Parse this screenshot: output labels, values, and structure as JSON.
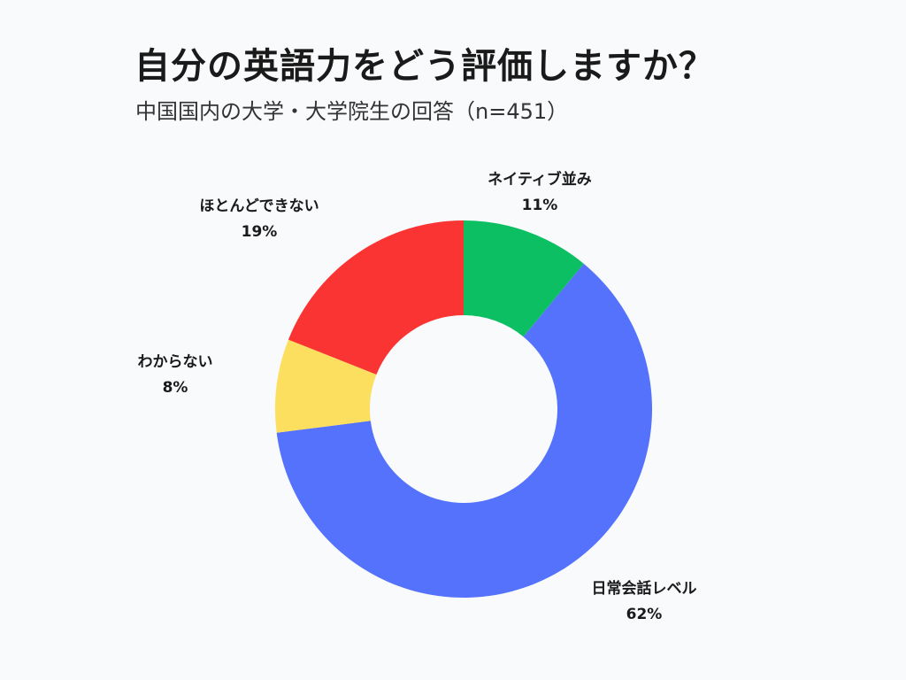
{
  "title": "自分の英語力をどう評価しますか？",
  "subtitle": "中国国内の大学・大学院生の回答（n=451）",
  "chart_data": {
    "type": "pie",
    "style": "donut",
    "title": "自分の英語力をどう評価しますか？",
    "subtitle": "中国国内の大学・大学院生の回答（n=451）",
    "start_angle": "12 o'clock",
    "direction": "clockwise",
    "slices": [
      {
        "label": "ネイティブ並み",
        "value": 11,
        "value_label": "11%",
        "color": "#0cbf62"
      },
      {
        "label": "日常会話レベル",
        "value": 62,
        "value_label": "62%",
        "color": "#5472fb"
      },
      {
        "label": "わからない",
        "value": 8,
        "value_label": "8%",
        "color": "#fddf5f"
      },
      {
        "label": "ほとんどできない",
        "value": 19,
        "value_label": "19%",
        "color": "#fa3333"
      }
    ]
  }
}
